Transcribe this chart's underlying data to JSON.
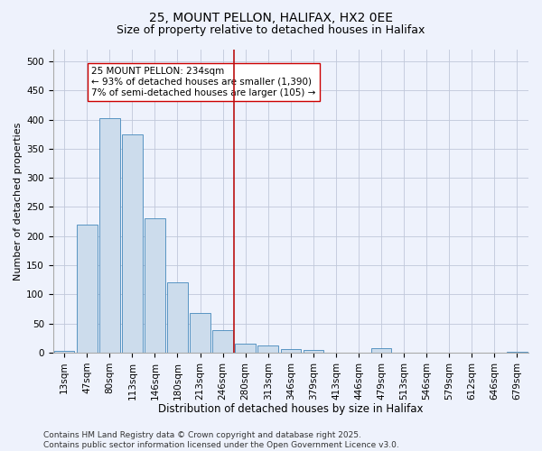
{
  "title1": "25, MOUNT PELLON, HALIFAX, HX2 0EE",
  "title2": "Size of property relative to detached houses in Halifax",
  "xlabel": "Distribution of detached houses by size in Halifax",
  "ylabel": "Number of detached properties",
  "bar_labels": [
    "13sqm",
    "47sqm",
    "80sqm",
    "113sqm",
    "146sqm",
    "180sqm",
    "213sqm",
    "246sqm",
    "280sqm",
    "313sqm",
    "346sqm",
    "379sqm",
    "413sqm",
    "446sqm",
    "479sqm",
    "513sqm",
    "546sqm",
    "579sqm",
    "612sqm",
    "646sqm",
    "679sqm"
  ],
  "bar_values": [
    3,
    220,
    403,
    375,
    230,
    120,
    68,
    38,
    15,
    13,
    6,
    5,
    0,
    0,
    7,
    0,
    0,
    0,
    0,
    0,
    2
  ],
  "bar_color": "#ccdcec",
  "bar_edge_color": "#4488bb",
  "vline_x": 7.5,
  "vline_color": "#bb1111",
  "annotation_text": "25 MOUNT PELLON: 234sqm\n← 93% of detached houses are smaller (1,390)\n7% of semi-detached houses are larger (105) →",
  "annotation_box_color": "#ffffff",
  "annotation_box_edge": "#cc0000",
  "ylim": [
    0,
    520
  ],
  "yticks": [
    0,
    50,
    100,
    150,
    200,
    250,
    300,
    350,
    400,
    450,
    500
  ],
  "footer_text": "Contains HM Land Registry data © Crown copyright and database right 2025.\nContains public sector information licensed under the Open Government Licence v3.0.",
  "bg_color": "#eef2fc",
  "plot_bg_color": "#eef2fc",
  "grid_color": "#c0c8da",
  "title1_fontsize": 10,
  "title2_fontsize": 9,
  "xlabel_fontsize": 8.5,
  "ylabel_fontsize": 8,
  "tick_fontsize": 7.5,
  "annotation_fontsize": 7.5,
  "footer_fontsize": 6.5
}
